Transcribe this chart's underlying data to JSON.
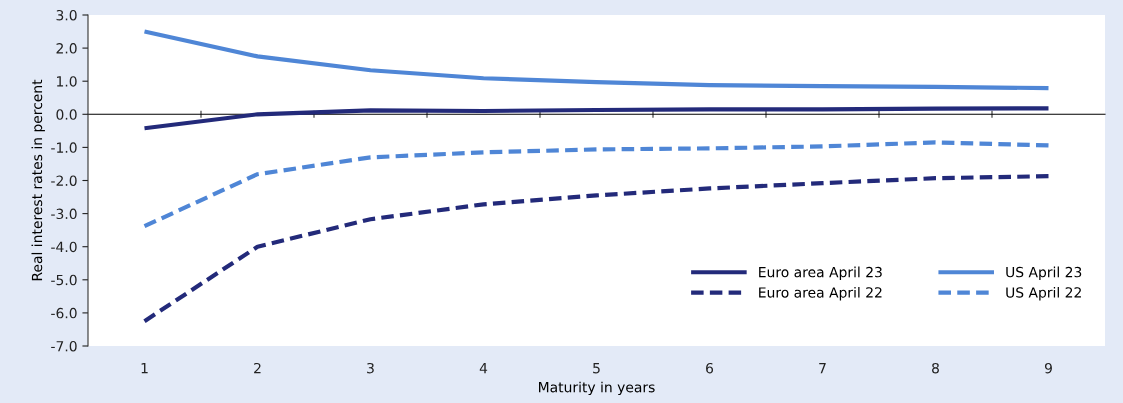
{
  "chart_data": {
    "type": "line",
    "xlabel": "Maturity in years",
    "ylabel": "Real interest rates in percent",
    "categories": [
      "1",
      "2",
      "3",
      "4",
      "5",
      "6",
      "7",
      "8",
      "9"
    ],
    "series": [
      {
        "name": "Euro area April 23",
        "color": "#232a7a",
        "line_style": "solid",
        "values": [
          -0.42,
          0.0,
          0.12,
          0.1,
          0.13,
          0.15,
          0.15,
          0.17,
          0.18
        ]
      },
      {
        "name": "Euro area April 22",
        "color": "#232a7a",
        "line_style": "dashed",
        "values": [
          -6.25,
          -4.0,
          -3.17,
          -2.72,
          -2.45,
          -2.24,
          -2.08,
          -1.93,
          -1.87
        ]
      },
      {
        "name": "US April 23",
        "color": "#4f86d6",
        "line_style": "solid",
        "values": [
          2.5,
          1.75,
          1.33,
          1.09,
          0.97,
          0.88,
          0.85,
          0.83,
          0.79
        ]
      },
      {
        "name": "US April 22",
        "color": "#4f86d6",
        "line_style": "dashed",
        "values": [
          -3.38,
          -1.81,
          -1.3,
          -1.15,
          -1.06,
          -1.03,
          -0.97,
          -0.85,
          -0.94
        ]
      }
    ],
    "ylim": [
      -7,
      3
    ],
    "yticks": [
      {
        "value": -7,
        "label": "-7.0"
      },
      {
        "value": -6,
        "label": "-6.0"
      },
      {
        "value": -5,
        "label": "-5.0"
      },
      {
        "value": -4,
        "label": "-4.0"
      },
      {
        "value": -3,
        "label": "-3.0"
      },
      {
        "value": -2,
        "label": "-2.0"
      },
      {
        "value": -1,
        "label": "-1.0"
      },
      {
        "value": 0,
        "label": "0.0"
      },
      {
        "value": 1,
        "label": "1.0"
      },
      {
        "value": 2,
        "label": "2.0"
      },
      {
        "value": 3,
        "label": "3.0"
      }
    ],
    "legend": "bottom right",
    "marker": "none"
  }
}
